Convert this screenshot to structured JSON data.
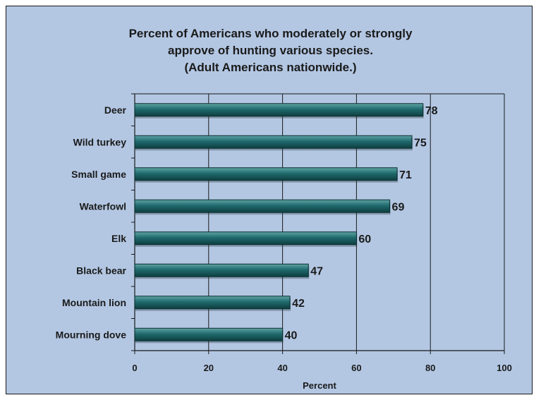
{
  "chart_data": {
    "type": "bar",
    "orientation": "horizontal",
    "title_lines": [
      "Percent of Americans who moderately or strongly",
      "approve of hunting various species.",
      "(Adult Americans nationwide.)"
    ],
    "categories": [
      "Deer",
      "Wild turkey",
      "Small game",
      "Waterfowl",
      "Elk",
      "Black bear",
      "Mountain lion",
      "Mourning dove"
    ],
    "values": [
      78,
      75,
      71,
      69,
      60,
      47,
      42,
      40
    ],
    "value_labels": [
      "78",
      "75",
      "71",
      "69",
      "60",
      "47",
      "42",
      "40"
    ],
    "xlabel": "Percent",
    "ylabel": "",
    "xlim": [
      0,
      100
    ],
    "xticks": [
      0,
      20,
      40,
      60,
      80,
      100
    ],
    "xtick_labels": [
      "0",
      "20",
      "40",
      "60",
      "80",
      "100"
    ],
    "grid": "vertical",
    "legend": "none",
    "colors": {
      "background": "#b3c7e3",
      "bar": "#1f6a6d",
      "bar_dark": "#0e3e40",
      "bar_light": "#5fa3a4",
      "grid": "#1a1a1a",
      "text": "#1a1a1a"
    }
  }
}
